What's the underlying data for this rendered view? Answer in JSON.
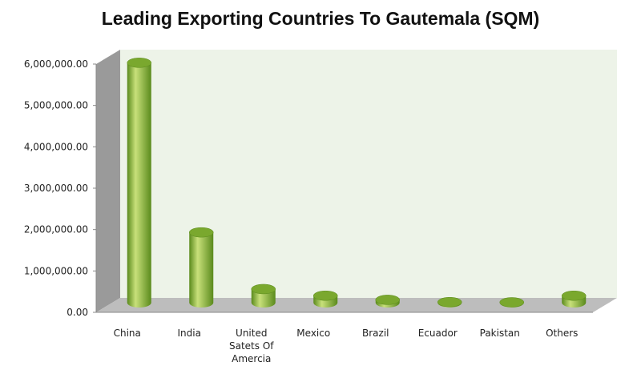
{
  "chart_data": {
    "type": "bar",
    "title": "Leading Exporting Countries To Gautemala (SQM)",
    "xlabel": "",
    "ylabel": "",
    "ylim": [
      0,
      6000000
    ],
    "y_ticks": [
      0,
      1000000,
      2000000,
      3000000,
      4000000,
      5000000,
      6000000
    ],
    "y_tick_labels": [
      "0.00",
      "1,000,000.00",
      "2,000,000.00",
      "3,000,000.00",
      "4,000,000.00",
      "5,000,000.00",
      "6,000,000.00"
    ],
    "categories": [
      "China",
      "India",
      "United Satets Of Amercia",
      "Mexico",
      "Brazil",
      "Ecuador",
      "Pakistan",
      "Others"
    ],
    "category_label_lines": [
      [
        "China"
      ],
      [
        "India"
      ],
      [
        "United",
        "Satets Of",
        "Amercia"
      ],
      [
        "Mexico"
      ],
      [
        "Brazil"
      ],
      [
        "Ecuador"
      ],
      [
        "Pakistan"
      ],
      [
        "Others"
      ]
    ],
    "values": [
      5800000,
      1700000,
      330000,
      170000,
      70000,
      15000,
      10000,
      170000
    ],
    "grid": false,
    "legend": "none",
    "bar_style": "3d-cylinder",
    "colors": {
      "bar_light": "#c8e07a",
      "bar_mid": "#92c03a",
      "bar_dark": "#5a8a1c",
      "bar_top": "#7aa82e",
      "plot_back": "#edf3e8",
      "plot_side": "#9a9a9a",
      "plot_floor": "#bdbdbd"
    }
  }
}
